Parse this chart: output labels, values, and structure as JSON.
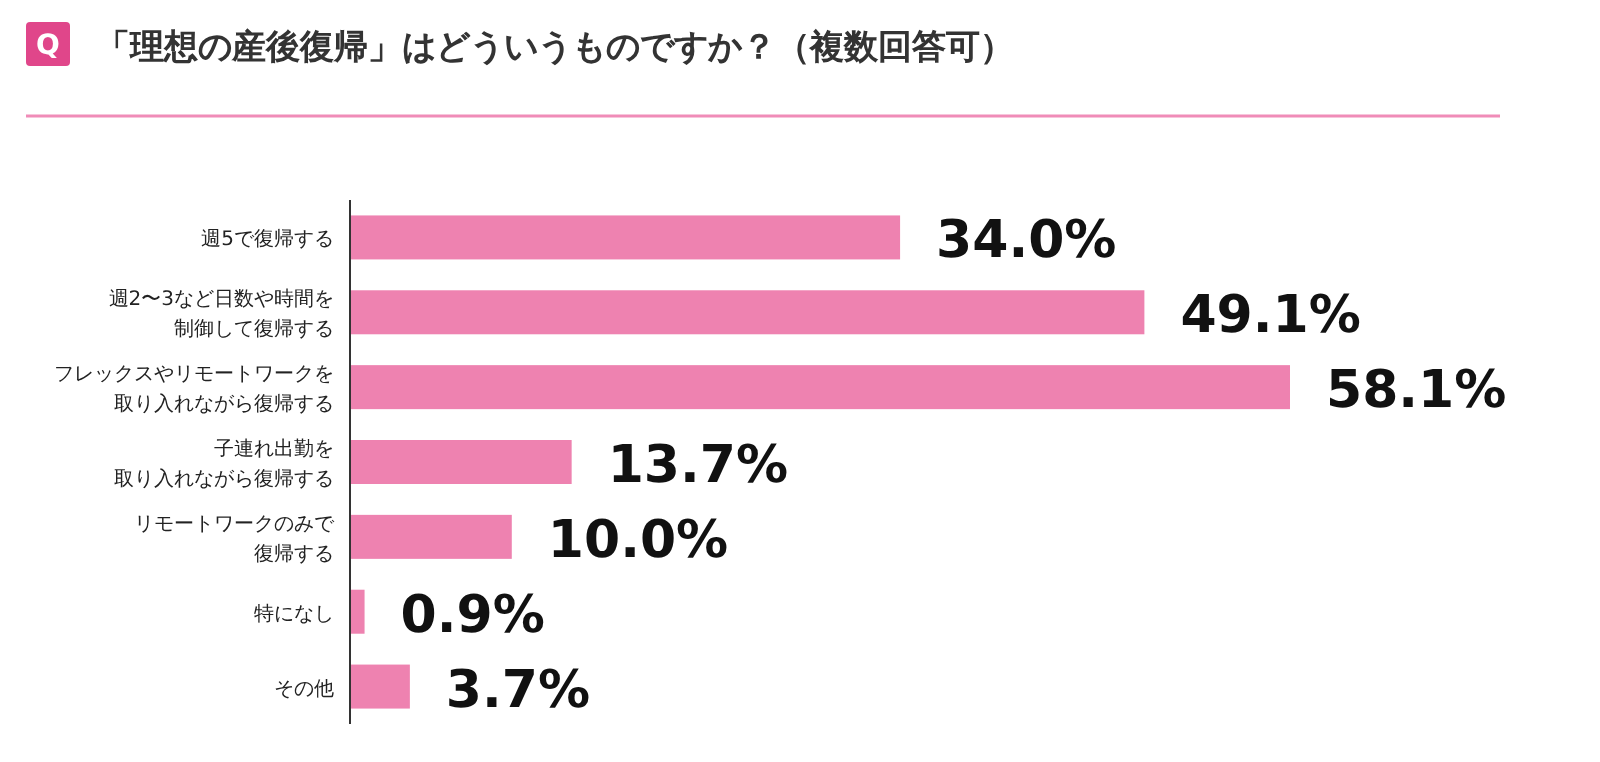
{
  "chart_data": {
    "type": "bar",
    "orientation": "horizontal",
    "title": "「理想の産後復帰」はどういうものですか？（複数回答可）",
    "annotations": [
      "Q"
    ],
    "categories": [
      "週5で復帰する",
      "週2〜3など日数や時間を制御して復帰する",
      "フレックスやリモートワークを取り入れながら復帰する",
      "子連れ出勤を取り入れながら復帰する",
      "リモートワークのみで復帰する",
      "特になし",
      "その他"
    ],
    "values": [
      34.0,
      49.1,
      58.1,
      13.7,
      10.0,
      0.9,
      3.7
    ],
    "value_labels": [
      "34.0%",
      "49.1%",
      "58.1%",
      "13.7%",
      "10.0%",
      "0.9%",
      "3.7%"
    ],
    "color": "#ee82b0"
  }
}
